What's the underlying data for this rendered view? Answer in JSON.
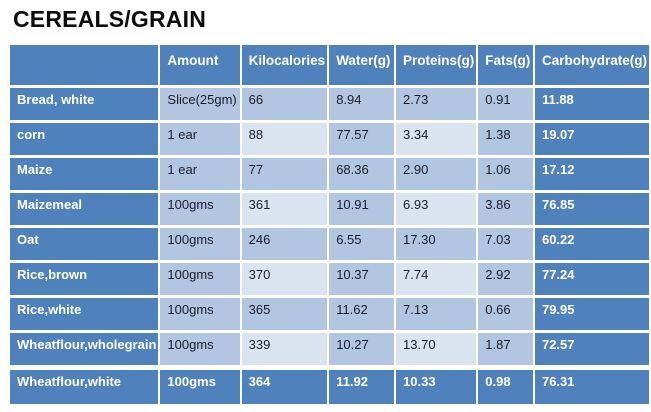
{
  "title": "CEREALS/GRAIN",
  "colors": {
    "accent": "#4F81BD",
    "band_medium": "#B2C6E2",
    "band_light": "#DAE3F0",
    "header_text": "#FFFFFF",
    "body_text": "#1C1C28"
  },
  "table": {
    "headers": [
      "",
      "Amount",
      "Kilocalories",
      "Water(g)",
      "Proteins(g)",
      "Fats(g)",
      "Carbohydrate(g)"
    ],
    "rows": [
      [
        "Bread, white",
        "Slice(25gm)",
        "66",
        "8.94",
        "2.73",
        "0.91",
        "11.88"
      ],
      [
        "corn",
        "1 ear",
        "88",
        "77.57",
        "3.34",
        "1.38",
        "19.07"
      ],
      [
        "Maize",
        "1 ear",
        "77",
        "68.36",
        "2.90",
        "1.06",
        "17.12"
      ],
      [
        "Maizemeal",
        "100gms",
        "361",
        "10.91",
        "6.93",
        "3.86",
        "76.85"
      ],
      [
        "Oat",
        "100gms",
        "246",
        "6.55",
        "17.30",
        "7.03",
        "60.22"
      ],
      [
        "Rice,brown",
        "100gms",
        "370",
        "10.37",
        "7.74",
        "2.92",
        "77.24"
      ],
      [
        "Rice,white",
        "100gms",
        "365",
        "11.62",
        "7.13",
        "0.66",
        "79.95"
      ],
      [
        "Wheatflour,wholegrain",
        "100gms",
        "339",
        "10.27",
        "13.70",
        "1.87",
        "72.57"
      ]
    ],
    "total_row": [
      "Wheatflour,white",
      "100gms",
      "364",
      "11.92",
      "10.33",
      "0.98",
      "76.31"
    ]
  }
}
